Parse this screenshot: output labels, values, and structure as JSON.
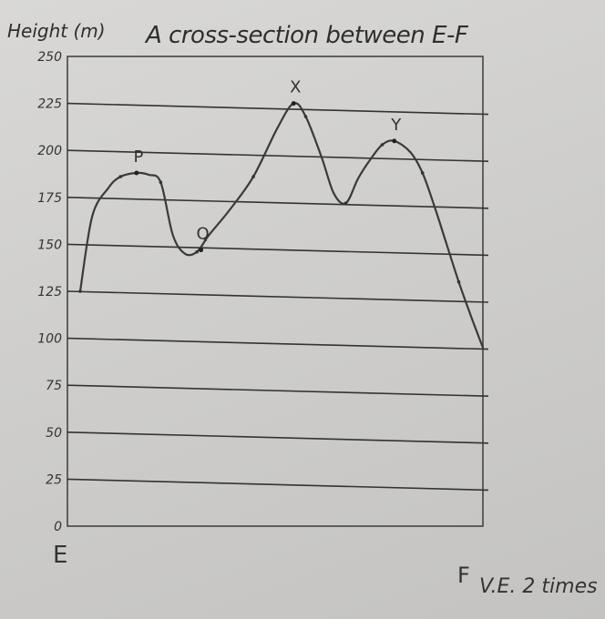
{
  "chart_data": {
    "type": "line",
    "title": "A cross-section between E-F",
    "ylabel": "Height (m)",
    "yticks": [
      0,
      25,
      50,
      75,
      100,
      125,
      150,
      175,
      200,
      225,
      250
    ],
    "ytick_labels": [
      "0",
      "25",
      "50",
      "75",
      "100",
      "125",
      "150",
      "175",
      "200",
      "225",
      "250"
    ],
    "ylim": [
      0,
      250
    ],
    "x_start_label": "E",
    "x_end_label": "F",
    "note": "V.E. 2 times",
    "grid": true,
    "series": [
      {
        "x": [
          0,
          0.03,
          0.07,
          0.1,
          0.14,
          0.17,
          0.2,
          0.23,
          0.26,
          0.29,
          0.32,
          0.37,
          0.43,
          0.49,
          0.53,
          0.56,
          0.6,
          0.63,
          0.66,
          0.69,
          0.72,
          0.75,
          0.78,
          0.82,
          0.85,
          0.88,
          0.91,
          0.94,
          0.97,
          1.0
        ],
        "y": [
          125,
          165,
          180,
          186,
          188,
          187,
          183,
          155,
          145,
          146,
          155,
          168,
          186,
          212,
          225,
          218,
          196,
          177,
          172,
          185,
          195,
          203,
          205,
          199,
          188,
          170,
          150,
          130,
          112,
          95
        ]
      }
    ],
    "annotations": [
      {
        "label": "P",
        "x": 0.14,
        "y": 188
      },
      {
        "label": "Q",
        "x": 0.3,
        "y": 147
      },
      {
        "label": "X",
        "x": 0.53,
        "y": 225
      },
      {
        "label": "Y",
        "x": 0.78,
        "y": 205
      }
    ]
  }
}
